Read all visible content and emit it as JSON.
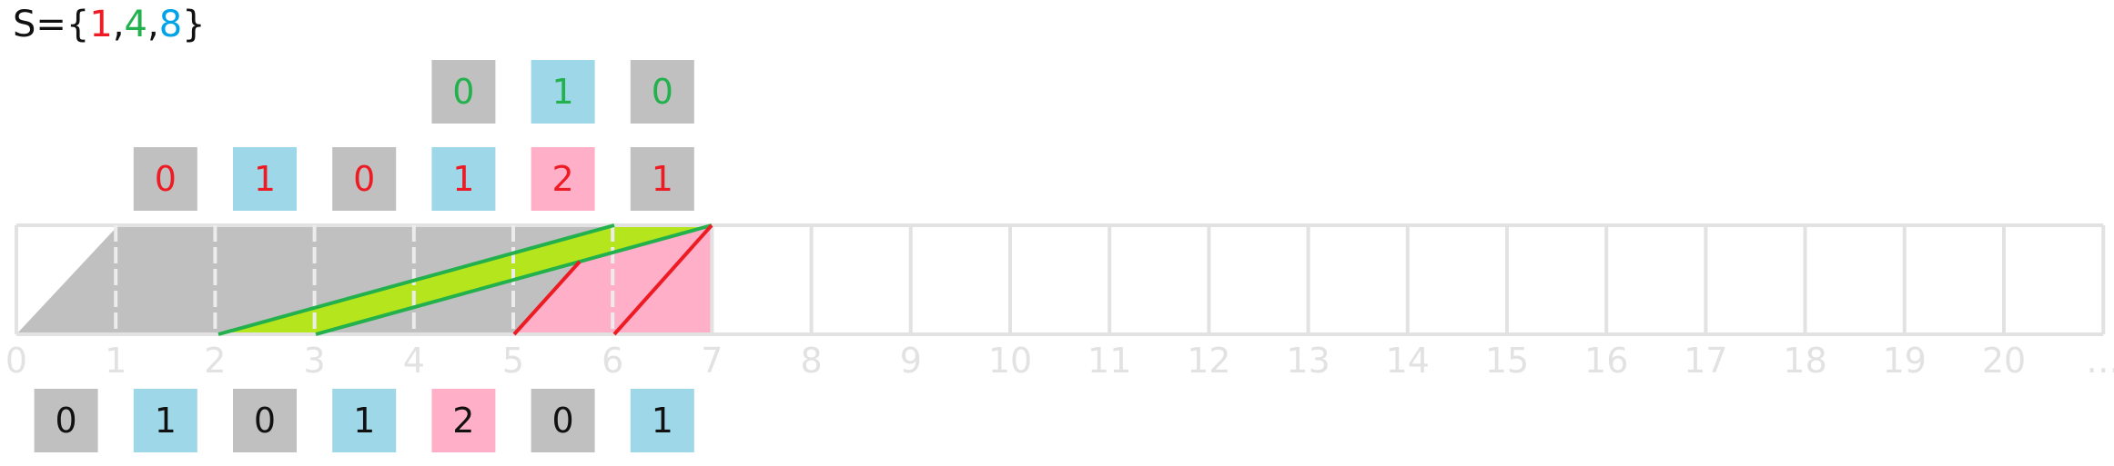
{
  "colors": {
    "gray_box": "#c0c0c0",
    "blue_box": "#9ed8e8",
    "pink_box": "#ffb0c8",
    "lime_fill": "#b5e61d",
    "green_line": "#22b14c",
    "red_line": "#ed1c24",
    "blue_text": "#00a2e8",
    "axis_gray": "#e2e2e2",
    "black": "#111111"
  },
  "set_label": {
    "prefix": "S={",
    "items": [
      {
        "text": "1",
        "color": "red"
      },
      {
        "text": ",",
        "color": "black"
      },
      {
        "text": "4",
        "color": "green"
      },
      {
        "text": ",",
        "color": "black"
      },
      {
        "text": "8",
        "color": "blue"
      },
      {
        "text": "}",
        "color": "black"
      }
    ]
  },
  "axis": {
    "ticks": [
      "0",
      "1",
      "2",
      "3",
      "4",
      "5",
      "6",
      "7",
      "8",
      "9",
      "10",
      "11",
      "12",
      "13",
      "14",
      "15",
      "16",
      "17",
      "18",
      "19",
      "20",
      "…"
    ]
  },
  "rows": {
    "top": {
      "text_color": "green",
      "cells": [
        {
          "pos": 4,
          "value": "0",
          "fill": "gray"
        },
        {
          "pos": 5,
          "value": "1",
          "fill": "blue"
        },
        {
          "pos": 6,
          "value": "0",
          "fill": "gray"
        }
      ]
    },
    "middle": {
      "text_color": "red",
      "cells": [
        {
          "pos": 1,
          "value": "0",
          "fill": "gray"
        },
        {
          "pos": 2,
          "value": "1",
          "fill": "blue"
        },
        {
          "pos": 3,
          "value": "0",
          "fill": "gray"
        },
        {
          "pos": 4,
          "value": "1",
          "fill": "blue"
        },
        {
          "pos": 5,
          "value": "2",
          "fill": "pink"
        },
        {
          "pos": 6,
          "value": "1",
          "fill": "gray"
        }
      ]
    },
    "bottom": {
      "text_color": "black",
      "cells": [
        {
          "pos": 0,
          "value": "0",
          "fill": "gray"
        },
        {
          "pos": 1,
          "value": "1",
          "fill": "blue"
        },
        {
          "pos": 2,
          "value": "0",
          "fill": "gray"
        },
        {
          "pos": 3,
          "value": "1",
          "fill": "blue"
        },
        {
          "pos": 4,
          "value": "2",
          "fill": "pink"
        },
        {
          "pos": 5,
          "value": "0",
          "fill": "gray"
        },
        {
          "pos": 6,
          "value": "1",
          "fill": "blue"
        }
      ]
    }
  }
}
